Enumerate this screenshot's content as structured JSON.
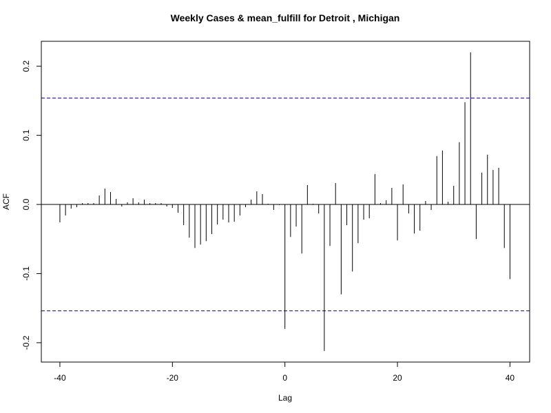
{
  "chart_data": {
    "type": "bar",
    "title": "Weekly Cases & mean_fulfill for Detroit , Michigan",
    "xlabel": "Lag",
    "ylabel": "ACF",
    "xlim": [
      -43.3,
      43.5
    ],
    "ylim": [
      -0.228,
      0.236
    ],
    "x_ticks": [
      -40,
      -20,
      0,
      20,
      40
    ],
    "y_ticks": [
      -0.2,
      -0.1,
      0.0,
      0.1,
      0.2
    ],
    "y_tick_labels": [
      "-0.2",
      "-0.1",
      "0.0",
      "0.1",
      "0.2"
    ],
    "confidence_limit": 0.154,
    "confidence_line_color": "#00008b",
    "zero_line": true,
    "grid": false,
    "lags": [
      -40,
      -39,
      -38,
      -37,
      -36,
      -35,
      -34,
      -33,
      -32,
      -31,
      -30,
      -29,
      -28,
      -27,
      -26,
      -25,
      -24,
      -23,
      -22,
      -21,
      -20,
      -19,
      -18,
      -17,
      -16,
      -15,
      -14,
      -13,
      -12,
      -11,
      -10,
      -9,
      -8,
      -7,
      -6,
      -5,
      -4,
      -3,
      -2,
      -1,
      0,
      1,
      2,
      3,
      4,
      5,
      6,
      7,
      8,
      9,
      10,
      11,
      12,
      13,
      14,
      15,
      16,
      17,
      18,
      19,
      20,
      21,
      22,
      23,
      24,
      25,
      26,
      27,
      28,
      29,
      30,
      31,
      32,
      33,
      34,
      35,
      36,
      37,
      38,
      39,
      40
    ],
    "values": [
      -0.026,
      -0.016,
      -0.006,
      -0.004,
      0.002,
      0.002,
      0.002,
      0.013,
      0.023,
      0.018,
      0.008,
      -0.003,
      0.003,
      0.009,
      0.003,
      0.007,
      0.002,
      0.002,
      0.002,
      -0.003,
      -0.005,
      -0.012,
      -0.03,
      -0.048,
      -0.063,
      -0.058,
      -0.053,
      -0.043,
      -0.029,
      -0.022,
      -0.026,
      -0.025,
      -0.016,
      -0.004,
      0.007,
      0.019,
      0.015,
      0.001,
      -0.008,
      -0.001,
      -0.18,
      -0.047,
      -0.032,
      -0.071,
      0.028,
      0.001,
      -0.013,
      -0.212,
      -0.06,
      0.031,
      -0.13,
      -0.03,
      -0.097,
      -0.056,
      -0.022,
      -0.02,
      0.044,
      0.002,
      0.006,
      0.024,
      -0.052,
      0.029,
      -0.013,
      -0.042,
      -0.038,
      0.005,
      -0.008,
      0.07,
      0.078,
      0.004,
      0.027,
      0.09,
      0.148,
      0.22,
      -0.05,
      0.046,
      0.072,
      0.05,
      0.053,
      -0.063,
      -0.108
    ]
  }
}
